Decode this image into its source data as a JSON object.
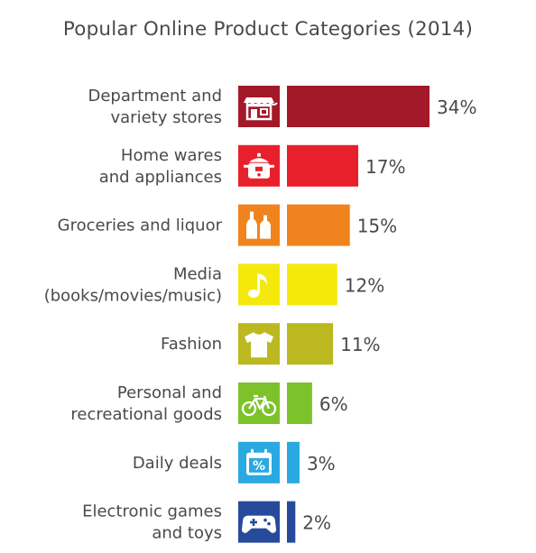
{
  "chart_data": {
    "type": "bar",
    "orientation": "horizontal",
    "title": "Popular Online Product Categories (2014)",
    "categories": [
      [
        "Department and",
        "variety stores"
      ],
      [
        "Home wares",
        "and appliances"
      ],
      [
        "Groceries and liquor"
      ],
      [
        "Media",
        "(books/movies/music)"
      ],
      [
        "Fashion"
      ],
      [
        "Personal and",
        "recreational goods"
      ],
      [
        "Daily deals"
      ],
      [
        "Electronic games",
        "and toys"
      ]
    ],
    "values": [
      34,
      17,
      15,
      12,
      11,
      6,
      3,
      2
    ],
    "value_labels": [
      "34%",
      "17%",
      "15%",
      "12%",
      "11%",
      "6%",
      "3%",
      "2%"
    ],
    "colors": [
      "#a3192a",
      "#e8202b",
      "#f0831e",
      "#f5e90b",
      "#bcb820",
      "#7dc22a",
      "#2aa8e0",
      "#274a9b"
    ],
    "icons": [
      "storefront-icon",
      "rice-cooker-icon",
      "bottles-icon",
      "music-note-icon",
      "tshirt-icon",
      "bicycle-icon",
      "calendar-percent-icon",
      "gamepad-icon"
    ],
    "xlim": [
      0,
      34
    ],
    "xlabel": "",
    "ylabel": "",
    "grid": false,
    "legend": "none"
  }
}
